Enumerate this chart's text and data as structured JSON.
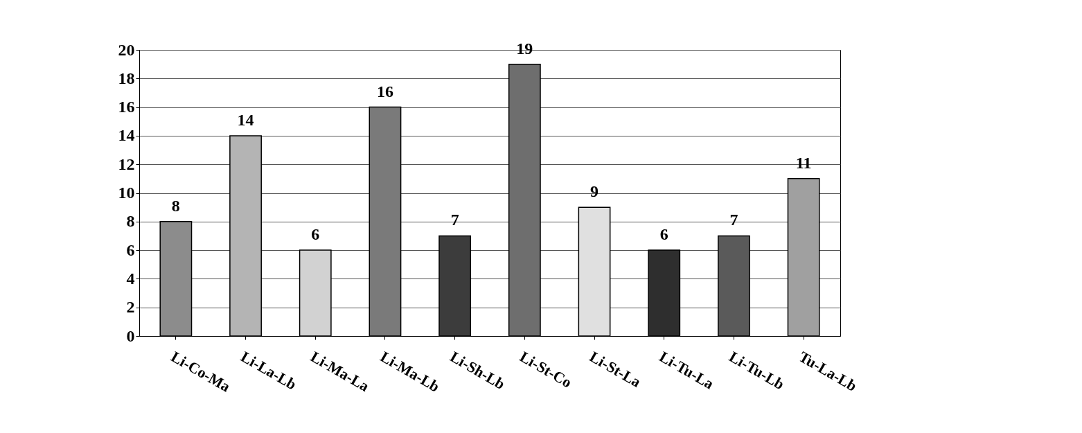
{
  "chart_data": {
    "type": "bar",
    "categories": [
      "Li-Co-Ma",
      "Li-La-Lb",
      "Li-Ma-La",
      "Li-Ma-Lb",
      "Li-Sh-Lb",
      "Li-St-Co",
      "Li-St-La",
      "Li-Tu-La",
      "Li-Tu-Lb",
      "Tu-La-Lb"
    ],
    "values": [
      8,
      14,
      6,
      16,
      7,
      19,
      9,
      6,
      7,
      11
    ],
    "colors": [
      "#8c8c8c",
      "#b4b4b4",
      "#d2d2d2",
      "#7a7a7a",
      "#3c3c3c",
      "#6e6e6e",
      "#e0e0e0",
      "#2e2e2e",
      "#5a5a5a",
      "#a0a0a0"
    ],
    "ylim": [
      0,
      20
    ],
    "yticks": [
      0,
      2,
      4,
      6,
      8,
      10,
      12,
      14,
      16,
      18,
      20
    ],
    "grid": "y",
    "data_labels": true
  }
}
